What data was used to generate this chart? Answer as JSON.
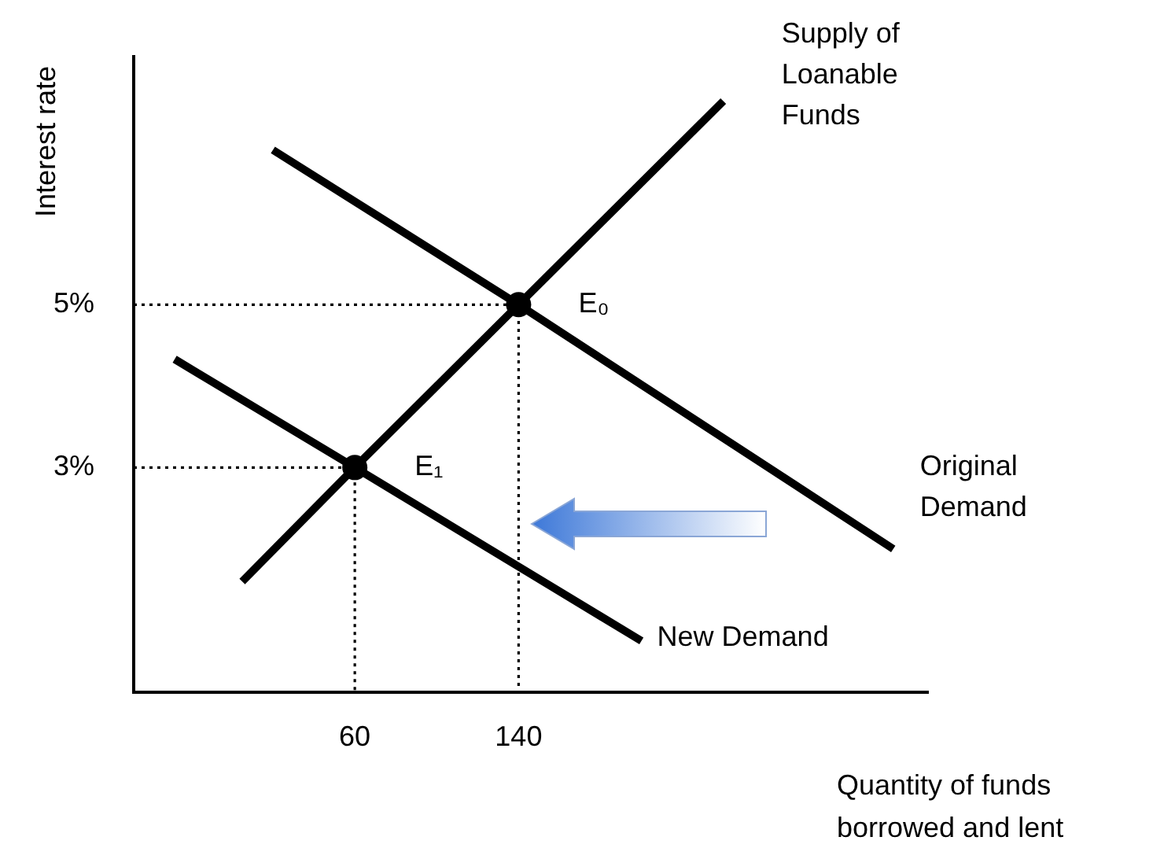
{
  "chart_data": {
    "type": "line",
    "xlabel": "Quantity of funds borrowed and lent",
    "ylabel": "Interest rate",
    "xlim": [
      -48,
      340
    ],
    "ylim": [
      0.24,
      8.05
    ],
    "xticks": [
      60,
      140
    ],
    "yticks": [
      {
        "value": 3,
        "label": "3%"
      },
      {
        "value": 5,
        "label": "5%"
      }
    ],
    "grid": false,
    "legend": false,
    "series": [
      {
        "name": "Supply of Loanable Funds",
        "color": "#000000",
        "x": [
          5,
          60,
          140,
          240
        ],
        "values": [
          1.6,
          3,
          5,
          7.5
        ]
      },
      {
        "name": "Original Demand",
        "color": "#000000",
        "x": [
          20,
          140,
          323
        ],
        "values": [
          6.9,
          5,
          2.0
        ]
      },
      {
        "name": "New Demand",
        "color": "#000000",
        "x": [
          -28,
          60,
          200
        ],
        "values": [
          4.33,
          3,
          0.87
        ]
      },
      {
        "type": "line",
        "line_style": "dotted",
        "color": "#000000",
        "x": [
          -48,
          140,
          140
        ],
        "values": [
          5,
          5,
          0.24
        ]
      },
      {
        "type": "line",
        "line_style": "dotted",
        "color": "#000000",
        "x": [
          -48,
          60,
          60
        ],
        "values": [
          3,
          3,
          0.24
        ]
      },
      {
        "type": "scatter",
        "marker": "circle",
        "color": "#000000",
        "x": [
          60,
          140
        ],
        "values": [
          3,
          5
        ]
      }
    ],
    "annotations": [
      {
        "text": "E₀",
        "x": 140,
        "y": 5
      },
      {
        "text": "E₁",
        "x": 60,
        "y": 3
      }
    ]
  }
}
